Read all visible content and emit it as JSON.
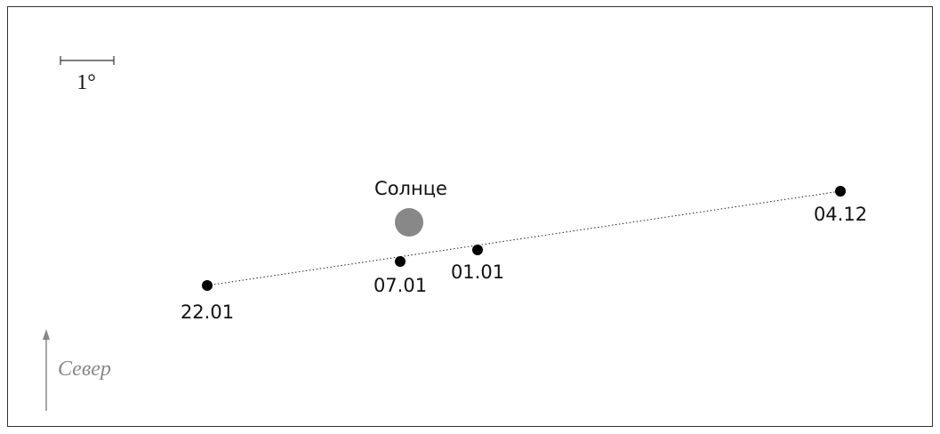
{
  "scale_label": "1°",
  "sun": {
    "label": "Солнце"
  },
  "points": [
    {
      "label": "04.12"
    },
    {
      "label": "01.01"
    },
    {
      "label": "07.01"
    },
    {
      "label": "22.01"
    }
  ],
  "north_label": "Север"
}
